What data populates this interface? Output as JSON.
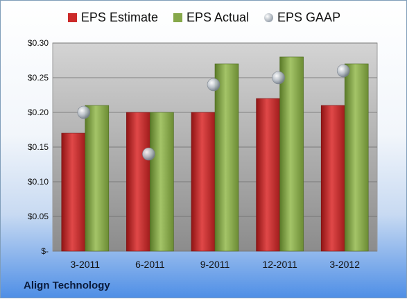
{
  "company": "Align Technology",
  "colors": {
    "estimate": "#cc2a2a",
    "actual": "#86a84a",
    "gaap": "#9aa3ae"
  },
  "chart_data": {
    "type": "bar",
    "categories": [
      "3-2011",
      "6-2011",
      "9-2011",
      "12-2011",
      "3-2012"
    ],
    "series": [
      {
        "name": "EPS Estimate",
        "values": [
          0.17,
          0.2,
          0.2,
          0.22,
          0.21
        ]
      },
      {
        "name": "EPS Actual",
        "values": [
          0.21,
          0.2,
          0.27,
          0.28,
          0.27
        ]
      },
      {
        "name": "EPS GAAP",
        "values": [
          0.2,
          0.14,
          0.24,
          0.25,
          0.26
        ],
        "marker": "circle"
      }
    ],
    "ylim": [
      0,
      0.3
    ],
    "yticks": [
      0,
      0.05,
      0.1,
      0.15,
      0.2,
      0.25,
      0.3
    ],
    "ytick_labels": [
      "$-",
      "$0.05",
      "$0.10",
      "$0.15",
      "$0.20",
      "$0.25",
      "$0.30"
    ],
    "grid": true,
    "legend": "top"
  }
}
